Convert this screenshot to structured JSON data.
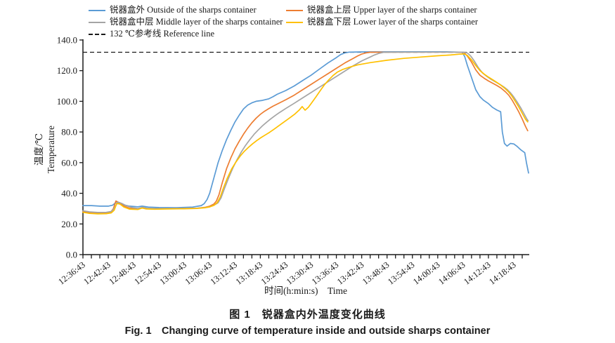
{
  "figure": {
    "caption_zh": "图 1　锐器盒内外温度变化曲线",
    "caption_en": "Fig. 1　Changing curve of temperature inside and outside sharps container"
  },
  "chart_data": {
    "type": "line",
    "title": "",
    "xlabel": "时间(h:min:s)　Time",
    "ylabel_zh": "温度/℃",
    "ylabel_en": "Temperature",
    "grid": false,
    "legend": {
      "position": "top",
      "rows": [
        [
          "outside",
          "upper"
        ],
        [
          "middle",
          "lower"
        ],
        [
          "reference"
        ]
      ]
    },
    "x_axis": {
      "unit": "h:min:s",
      "tick_interval_minutes": 6,
      "minor_tick_interval_minutes": 2,
      "t_max_minutes": 105.5,
      "tick_labels": [
        "12:36:43",
        "12:42:43",
        "12:48:43",
        "12:54:43",
        "13:00:43",
        "13:06:43",
        "13:12:43",
        "13:18:43",
        "13:24:43",
        "13:30:43",
        "13:36:43",
        "13:42:43",
        "13:48:43",
        "13:54:43",
        "14:00:43",
        "14:06:43",
        "14:12:43",
        "14:18:43"
      ]
    },
    "y_axis": {
      "min": 0,
      "max": 140,
      "tick_step": 20,
      "tick_labels": [
        "0.0",
        "20.0",
        "40.0",
        "60.0",
        "80.0",
        "100.0",
        "120.0",
        "140.0"
      ]
    },
    "reference_line": {
      "value": 132,
      "label": "132 ℃参考线 Reference line",
      "color": "#1a1a1a",
      "style": "dashed"
    },
    "series": [
      {
        "key": "outside",
        "name": "锐器盒外 Outside of the sharps container",
        "color": "#5B9BD5",
        "points": [
          [
            0,
            32
          ],
          [
            2,
            32
          ],
          [
            4,
            31.6
          ],
          [
            6,
            31.6
          ],
          [
            7,
            32.2
          ],
          [
            7.6,
            33.6
          ],
          [
            8.4,
            34
          ],
          [
            9.4,
            32.6
          ],
          [
            11,
            31.6
          ],
          [
            13,
            31.2
          ],
          [
            14,
            31.6
          ],
          [
            15.5,
            31
          ],
          [
            18,
            30.7
          ],
          [
            22,
            30.6
          ],
          [
            26,
            31
          ],
          [
            28,
            32
          ],
          [
            28.7,
            33.2
          ],
          [
            29.4,
            36
          ],
          [
            30,
            40
          ],
          [
            31,
            50
          ],
          [
            32,
            60
          ],
          [
            33,
            68
          ],
          [
            34,
            75
          ],
          [
            35,
            81
          ],
          [
            36,
            86.5
          ],
          [
            37,
            91
          ],
          [
            38,
            95
          ],
          [
            39,
            97.5
          ],
          [
            40,
            99
          ],
          [
            41,
            100
          ],
          [
            42.5,
            100.6
          ],
          [
            44,
            101.6
          ],
          [
            45,
            103
          ],
          [
            46,
            104.6
          ],
          [
            48,
            107
          ],
          [
            50,
            110
          ],
          [
            52,
            113.5
          ],
          [
            54,
            117
          ],
          [
            56,
            121
          ],
          [
            58,
            125
          ],
          [
            60,
            128.5
          ],
          [
            61,
            130.5
          ],
          [
            62,
            131.6
          ],
          [
            63,
            132.1
          ],
          [
            66,
            132.2
          ],
          [
            72,
            132.3
          ],
          [
            80,
            132.3
          ],
          [
            86,
            132.3
          ],
          [
            89.8,
            132
          ],
          [
            90.4,
            129
          ],
          [
            91,
            123.5
          ],
          [
            92,
            115.5
          ],
          [
            93,
            107.5
          ],
          [
            94,
            103
          ],
          [
            94.8,
            100.8
          ],
          [
            96,
            98.5
          ],
          [
            97,
            96
          ],
          [
            98,
            94.3
          ],
          [
            98.9,
            93.2
          ],
          [
            99.3,
            80
          ],
          [
            99.8,
            72.5
          ],
          [
            100.4,
            70.8
          ],
          [
            101.2,
            72.5
          ],
          [
            102,
            72.2
          ],
          [
            102.7,
            70.8
          ],
          [
            103.6,
            68.5
          ],
          [
            104.6,
            66.5
          ],
          [
            105,
            60
          ],
          [
            105.5,
            53.2
          ]
        ]
      },
      {
        "key": "upper",
        "name": "锐器盒上层 Upper layer of the sharps container",
        "color": "#ED7D31",
        "points": [
          [
            0,
            28
          ],
          [
            1.5,
            27.3
          ],
          [
            3.5,
            27
          ],
          [
            5.5,
            27.2
          ],
          [
            6.6,
            27.8
          ],
          [
            7.2,
            30
          ],
          [
            7.8,
            35
          ],
          [
            8.6,
            33.8
          ],
          [
            9.6,
            31.8
          ],
          [
            11,
            30.3
          ],
          [
            13,
            29.7
          ],
          [
            14,
            30.6
          ],
          [
            15,
            30
          ],
          [
            17,
            29.9
          ],
          [
            20,
            30
          ],
          [
            24,
            30.1
          ],
          [
            27,
            30.3
          ],
          [
            29,
            30.9
          ],
          [
            30,
            31.6
          ],
          [
            31,
            33
          ],
          [
            31.6,
            35
          ],
          [
            32.2,
            39
          ],
          [
            33,
            47
          ],
          [
            34,
            56
          ],
          [
            35,
            63
          ],
          [
            36,
            69
          ],
          [
            37,
            74
          ],
          [
            38,
            78.5
          ],
          [
            39,
            82.5
          ],
          [
            40,
            86
          ],
          [
            41,
            89
          ],
          [
            42,
            91.5
          ],
          [
            43,
            93.5
          ],
          [
            44,
            95.2
          ],
          [
            45,
            96.8
          ],
          [
            46,
            98.2
          ],
          [
            48,
            101
          ],
          [
            50,
            104
          ],
          [
            52,
            107.5
          ],
          [
            54,
            111
          ],
          [
            56,
            114.5
          ],
          [
            58,
            118
          ],
          [
            60,
            121.5
          ],
          [
            62,
            125
          ],
          [
            64,
            128
          ],
          [
            65,
            129.5
          ],
          [
            66,
            130.8
          ],
          [
            67,
            131.6
          ],
          [
            68,
            132
          ],
          [
            74,
            132.1
          ],
          [
            82,
            132.1
          ],
          [
            88,
            132.1
          ],
          [
            90.2,
            131.9
          ],
          [
            91,
            129.5
          ],
          [
            92,
            125.5
          ],
          [
            93,
            120.5
          ],
          [
            94,
            117
          ],
          [
            95,
            115
          ],
          [
            96,
            113.3
          ],
          [
            97,
            111.8
          ],
          [
            98,
            110.3
          ],
          [
            99,
            108.6
          ],
          [
            100,
            106.3
          ],
          [
            100.8,
            104
          ],
          [
            101.6,
            100.8
          ],
          [
            102.4,
            97
          ],
          [
            103.2,
            93
          ],
          [
            104,
            88.5
          ],
          [
            104.8,
            83.5
          ],
          [
            105.3,
            80.8
          ]
        ]
      },
      {
        "key": "middle",
        "name": "锐器盒中层 Middle layer of the sharps container",
        "color": "#A5A5A5",
        "points": [
          [
            0,
            28.6
          ],
          [
            1.5,
            27.9
          ],
          [
            3.5,
            27.5
          ],
          [
            5.5,
            27.6
          ],
          [
            6.8,
            28.2
          ],
          [
            7.6,
            31
          ],
          [
            8.3,
            34.3
          ],
          [
            9.2,
            33.4
          ],
          [
            10.2,
            32
          ],
          [
            11.5,
            30.8
          ],
          [
            13,
            30.1
          ],
          [
            14.2,
            30.9
          ],
          [
            15.2,
            30.3
          ],
          [
            17,
            30.1
          ],
          [
            20,
            30.1
          ],
          [
            24,
            30.1
          ],
          [
            27,
            30.3
          ],
          [
            29,
            30.7
          ],
          [
            30,
            31.2
          ],
          [
            31,
            32.2
          ],
          [
            32,
            33.8
          ],
          [
            32.7,
            37
          ],
          [
            33.5,
            43
          ],
          [
            34.5,
            50
          ],
          [
            35.5,
            56.5
          ],
          [
            36.5,
            62
          ],
          [
            37.5,
            67
          ],
          [
            38.5,
            71.3
          ],
          [
            39.5,
            75
          ],
          [
            40.5,
            78.4
          ],
          [
            41.5,
            81.3
          ],
          [
            42.5,
            84
          ],
          [
            43.5,
            86.4
          ],
          [
            44.5,
            88.6
          ],
          [
            45.5,
            90.7
          ],
          [
            46.5,
            92.6
          ],
          [
            48,
            95.3
          ],
          [
            50,
            98.7
          ],
          [
            52,
            102.2
          ],
          [
            54,
            105.7
          ],
          [
            56,
            109.2
          ],
          [
            58,
            112.7
          ],
          [
            60,
            116.2
          ],
          [
            62,
            119.7
          ],
          [
            64,
            123.2
          ],
          [
            66,
            126.3
          ],
          [
            68,
            128.9
          ],
          [
            69,
            130.2
          ],
          [
            70,
            131.2
          ],
          [
            71.2,
            132
          ],
          [
            77,
            132.1
          ],
          [
            84,
            132.1
          ],
          [
            90,
            132.1
          ],
          [
            91,
            131.6
          ],
          [
            91.8,
            129.5
          ],
          [
            92.6,
            126.5
          ],
          [
            93.6,
            122
          ],
          [
            94.6,
            118.5
          ],
          [
            95.6,
            116.3
          ],
          [
            96.6,
            114.4
          ],
          [
            97.6,
            112.8
          ],
          [
            98.6,
            111.2
          ],
          [
            99.6,
            109.5
          ],
          [
            100.4,
            107.8
          ],
          [
            101.2,
            105.6
          ],
          [
            102,
            102.8
          ],
          [
            102.8,
            99.5
          ],
          [
            103.6,
            96
          ],
          [
            104.4,
            92
          ],
          [
            105.1,
            88.5
          ],
          [
            105.4,
            87.3
          ]
        ]
      },
      {
        "key": "lower",
        "name": "锐器盒下层 Lower layer of the sharps container",
        "color": "#FFC000",
        "points": [
          [
            0,
            27.6
          ],
          [
            1.5,
            26.9
          ],
          [
            3.5,
            26.6
          ],
          [
            5.5,
            26.7
          ],
          [
            6.7,
            27.2
          ],
          [
            7.4,
            29
          ],
          [
            8,
            33.4
          ],
          [
            8.8,
            32.9
          ],
          [
            9.7,
            31
          ],
          [
            11,
            29.7
          ],
          [
            13,
            29.4
          ],
          [
            14,
            30.4
          ],
          [
            15,
            29.8
          ],
          [
            17,
            29.6
          ],
          [
            20,
            29.8
          ],
          [
            24,
            29.9
          ],
          [
            27,
            30.1
          ],
          [
            29,
            30.6
          ],
          [
            30,
            31.1
          ],
          [
            31,
            32.1
          ],
          [
            31.8,
            34
          ],
          [
            32.5,
            37.5
          ],
          [
            33.2,
            43
          ],
          [
            34.2,
            50
          ],
          [
            35.2,
            55.8
          ],
          [
            36.2,
            60.3
          ],
          [
            37.2,
            64.2
          ],
          [
            38.2,
            67.4
          ],
          [
            39.2,
            70
          ],
          [
            40.2,
            72.4
          ],
          [
            41.2,
            74.5
          ],
          [
            42.2,
            76.4
          ],
          [
            43.2,
            78.1
          ],
          [
            44.2,
            79.8
          ],
          [
            45.2,
            81.7
          ],
          [
            46.2,
            83.7
          ],
          [
            47.2,
            85.7
          ],
          [
            48.2,
            87.7
          ],
          [
            49.2,
            89.7
          ],
          [
            50.2,
            91.8
          ],
          [
            51.2,
            94.3
          ],
          [
            51.9,
            96.6
          ],
          [
            52.6,
            94.2
          ],
          [
            53.4,
            96.2
          ],
          [
            54.2,
            99.2
          ],
          [
            55.2,
            103
          ],
          [
            56.2,
            107
          ],
          [
            57.2,
            110.8
          ],
          [
            58.2,
            114
          ],
          [
            59.2,
            116.8
          ],
          [
            60.2,
            119
          ],
          [
            61.5,
            120.8
          ],
          [
            63,
            122.2
          ],
          [
            65,
            123.7
          ],
          [
            68,
            125.2
          ],
          [
            72,
            126.8
          ],
          [
            76,
            128
          ],
          [
            80,
            128.9
          ],
          [
            84,
            129.7
          ],
          [
            87,
            130.2
          ],
          [
            89,
            130.7
          ],
          [
            90.2,
            130.9
          ],
          [
            91,
            130
          ],
          [
            92,
            127
          ],
          [
            93,
            123.3
          ],
          [
            94,
            120
          ],
          [
            95,
            117.7
          ],
          [
            96,
            115.8
          ],
          [
            97,
            114.1
          ],
          [
            98,
            112.3
          ],
          [
            99,
            110.4
          ],
          [
            100,
            108.2
          ],
          [
            100.8,
            106
          ],
          [
            101.6,
            103.2
          ],
          [
            102.4,
            99.8
          ],
          [
            103.2,
            96.2
          ],
          [
            104,
            92.2
          ],
          [
            104.8,
            88.2
          ],
          [
            105.3,
            86.5
          ]
        ]
      }
    ]
  }
}
